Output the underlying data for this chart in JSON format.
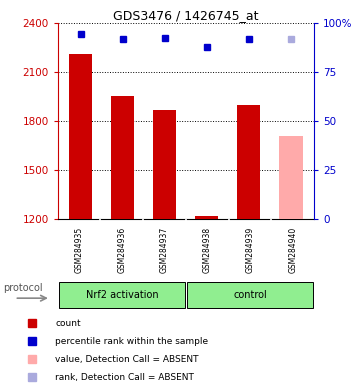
{
  "title": "GDS3476 / 1426745_at",
  "samples": [
    "GSM284935",
    "GSM284936",
    "GSM284937",
    "GSM284938",
    "GSM284939",
    "GSM284940"
  ],
  "bar_values": [
    2210,
    1950,
    1865,
    1218,
    1900,
    1710
  ],
  "bar_colors": [
    "#cc0000",
    "#cc0000",
    "#cc0000",
    "#cc0000",
    "#cc0000",
    "#ffaaaa"
  ],
  "dot_values_left": [
    2335,
    2300,
    2310,
    2255,
    2305,
    2300
  ],
  "dot_colors": [
    "#0000cc",
    "#0000cc",
    "#0000cc",
    "#0000cc",
    "#0000cc",
    "#aaaadd"
  ],
  "ylim_left": [
    1200,
    2400
  ],
  "ylim_right": [
    0,
    100
  ],
  "yticks_left": [
    1200,
    1500,
    1800,
    2100,
    2400
  ],
  "yticks_right": [
    0,
    25,
    50,
    75,
    100
  ],
  "groups": [
    {
      "label": "Nrf2 activation",
      "color": "#90ee90",
      "start": 0,
      "end": 3
    },
    {
      "label": "control",
      "color": "#90ee90",
      "start": 3,
      "end": 6
    }
  ],
  "protocol_label": "protocol",
  "legend_items": [
    {
      "color": "#cc0000",
      "label": "count"
    },
    {
      "color": "#0000cc",
      "label": "percentile rank within the sample"
    },
    {
      "color": "#ffaaaa",
      "label": "value, Detection Call = ABSENT"
    },
    {
      "color": "#aaaadd",
      "label": "rank, Detection Call = ABSENT"
    }
  ],
  "bar_bottom": 1200,
  "left_color": "#cc0000",
  "right_color": "#0000cc",
  "background_color": "#ffffff",
  "bar_width": 0.55,
  "n_samples": 6
}
